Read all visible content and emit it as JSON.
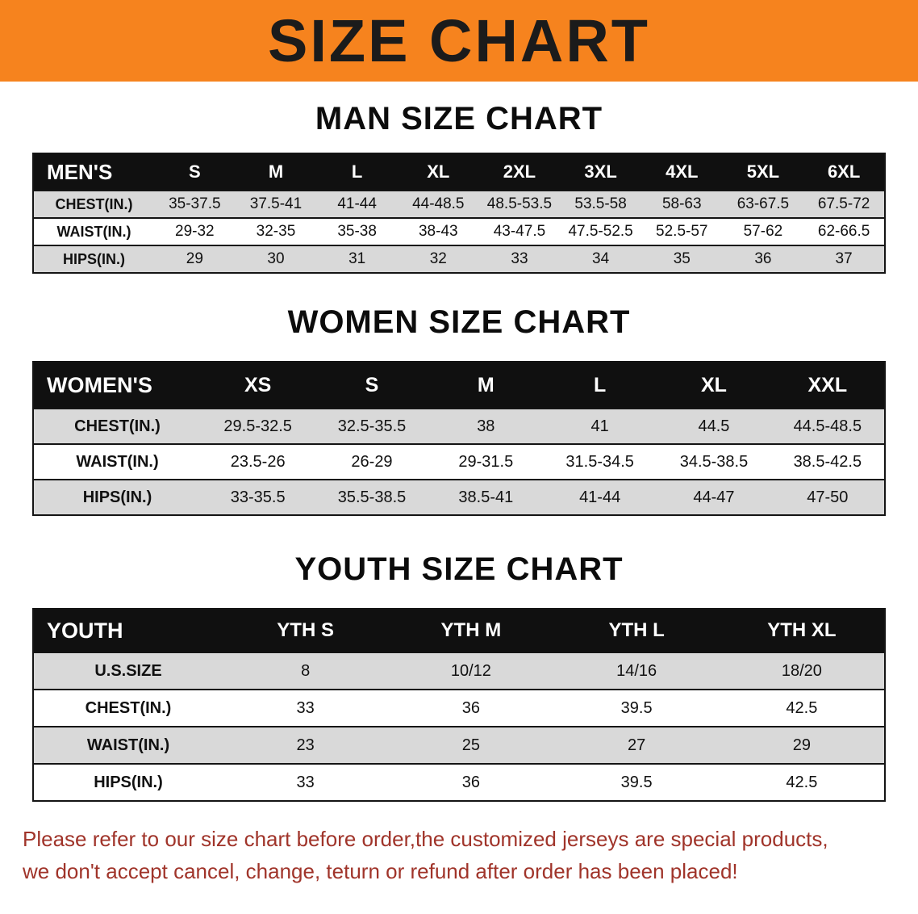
{
  "banner": {
    "title": "SIZE CHART"
  },
  "colors": {
    "banner_bg": "#f6831e",
    "banner_text": "#1b1b1b",
    "table_header_bg": "#101010",
    "row_alt_bg": "#d9d9d9",
    "disclaimer_text": "#a0342a"
  },
  "sections": [
    {
      "heading": "MAN SIZE CHART",
      "table": {
        "header": [
          "MEN'S",
          "S",
          "M",
          "L",
          "XL",
          "2XL",
          "3XL",
          "4XL",
          "5XL",
          "6XL"
        ],
        "rows": [
          {
            "label": "CHEST(IN.)",
            "values": [
              "35-37.5",
              "37.5-41",
              "41-44",
              "44-48.5",
              "48.5-53.5",
              "53.5-58",
              "58-63",
              "63-67.5",
              "67.5-72"
            ]
          },
          {
            "label": "WAIST(IN.)",
            "values": [
              "29-32",
              "32-35",
              "35-38",
              "38-43",
              "43-47.5",
              "47.5-52.5",
              "52.5-57",
              "57-62",
              "62-66.5"
            ]
          },
          {
            "label": "HIPS(IN.)",
            "values": [
              "29",
              "30",
              "31",
              "32",
              "33",
              "34",
              "35",
              "36",
              "37"
            ]
          }
        ]
      }
    },
    {
      "heading": "WOMEN SIZE CHART",
      "table": {
        "header": [
          "WOMEN'S",
          "XS",
          "S",
          "M",
          "L",
          "XL",
          "XXL"
        ],
        "rows": [
          {
            "label": "CHEST(IN.)",
            "values": [
              "29.5-32.5",
              "32.5-35.5",
              "38",
              "41",
              "44.5",
              "44.5-48.5"
            ]
          },
          {
            "label": "WAIST(IN.)",
            "values": [
              "23.5-26",
              "26-29",
              "29-31.5",
              "31.5-34.5",
              "34.5-38.5",
              "38.5-42.5"
            ]
          },
          {
            "label": "HIPS(IN.)",
            "values": [
              "33-35.5",
              "35.5-38.5",
              "38.5-41",
              "41-44",
              "44-47",
              "47-50"
            ]
          }
        ]
      }
    },
    {
      "heading": "YOUTH SIZE CHART",
      "table": {
        "header": [
          "YOUTH",
          "YTH S",
          "YTH M",
          "YTH L",
          "YTH XL"
        ],
        "rows": [
          {
            "label": "U.S.SIZE",
            "values": [
              "8",
              "10/12",
              "14/16",
              "18/20"
            ]
          },
          {
            "label": "CHEST(IN.)",
            "values": [
              "33",
              "36",
              "39.5",
              "42.5"
            ]
          },
          {
            "label": "WAIST(IN.)",
            "values": [
              "23",
              "25",
              "27",
              "29"
            ]
          },
          {
            "label": "HIPS(IN.)",
            "values": [
              "33",
              "36",
              "39.5",
              "42.5"
            ]
          }
        ]
      }
    }
  ],
  "disclaimer": {
    "line1": "Please refer to our size chart before order,the customized jerseys are special products,",
    "line2": "we don't accept cancel, change, teturn or refund after order has been placed!"
  }
}
